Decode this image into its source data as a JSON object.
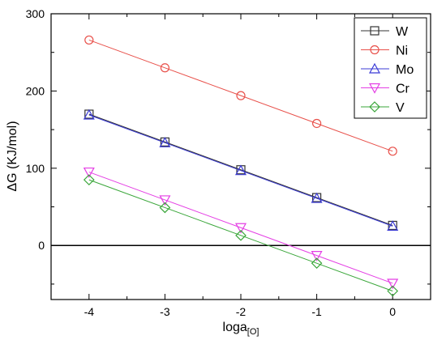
{
  "chart_data": {
    "type": "line",
    "title": "",
    "xlabel": "loga",
    "xlabel_subscript": "[O]",
    "ylabel": "ΔG (KJ/mol)",
    "xlim": [
      -4.5,
      0.5
    ],
    "ylim": [
      -70,
      300
    ],
    "xticks": [
      -4,
      -3,
      -2,
      -1,
      0
    ],
    "xtick_labels": [
      "-4",
      "-3",
      "-2",
      "-1",
      "0"
    ],
    "yticks": [
      0,
      100,
      200,
      300
    ],
    "ytick_labels": [
      "0",
      "100",
      "200",
      "300"
    ],
    "x": [
      -4,
      -3,
      -2,
      -1,
      0
    ],
    "reference_line_y": 0,
    "grid": false,
    "legend_position": "top-right",
    "series": [
      {
        "name": "W",
        "color": "#333333",
        "marker": "square",
        "values": [
          170,
          134,
          98,
          62,
          26
        ]
      },
      {
        "name": "Ni",
        "color": "#e8504a",
        "marker": "circle",
        "values": [
          266,
          230,
          194,
          158,
          122
        ]
      },
      {
        "name": "Mo",
        "color": "#3b3bd6",
        "marker": "triangle-up",
        "values": [
          169,
          133,
          97,
          61,
          25
        ]
      },
      {
        "name": "Cr",
        "color": "#e43ee4",
        "marker": "triangle-down",
        "values": [
          95,
          59,
          23,
          -13,
          -49
        ]
      },
      {
        "name": "V",
        "color": "#3aa63a",
        "marker": "diamond",
        "values": [
          85,
          49,
          13,
          -23,
          -59
        ]
      }
    ]
  }
}
